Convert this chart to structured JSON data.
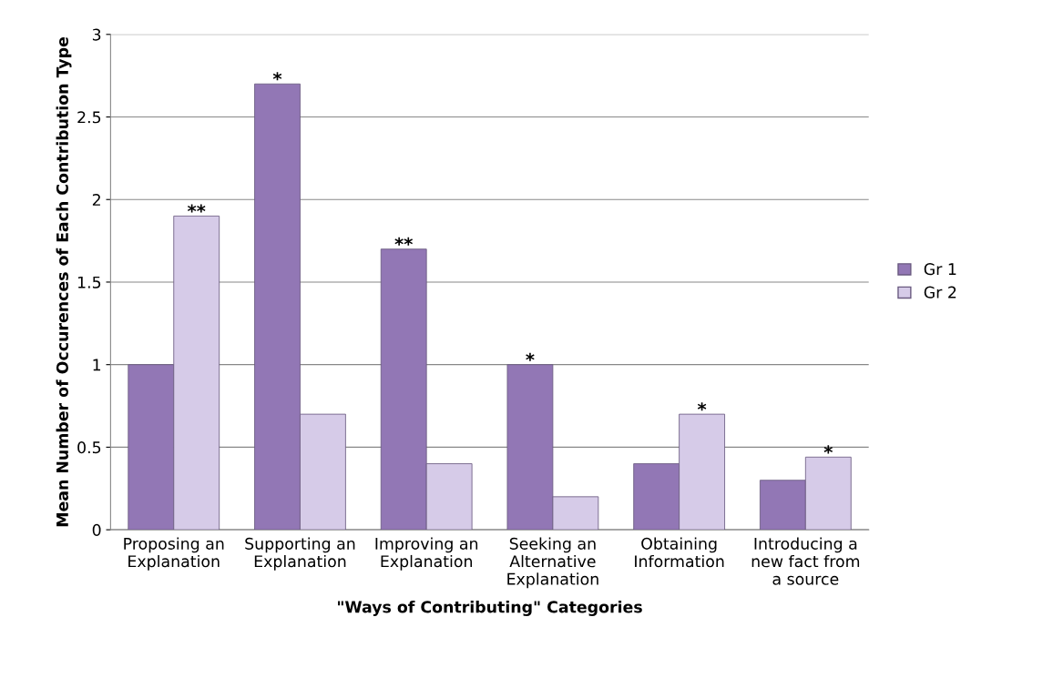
{
  "chart_data": {
    "type": "bar",
    "xlabel": "\"Ways of Contributing\" Categories",
    "ylabel": "Mean Number of Occurences of Each Contribution Type",
    "categories": [
      "Proposing an\nExplanation",
      "Supporting an\nExplanation",
      "Improving an\nExplanation",
      "Seeking an\nAlternative\nExplanation",
      "Obtaining\nInformation",
      "Introducing a\nnew fact from\na source"
    ],
    "series": [
      {
        "name": "Gr 1",
        "color": "#9277b5",
        "values": [
          1.0,
          2.7,
          1.7,
          1.0,
          0.4,
          0.3
        ],
        "value_labels": [
          null,
          "*",
          "**",
          "*",
          null,
          null
        ]
      },
      {
        "name": "Gr 2",
        "color": "#d6cbe8",
        "values": [
          1.9,
          0.7,
          0.4,
          0.2,
          0.7,
          0.44
        ],
        "value_labels": [
          "**",
          null,
          null,
          null,
          "*",
          "*"
        ]
      }
    ],
    "ylim": [
      0,
      3
    ],
    "yticks": [
      0,
      0.5,
      1,
      1.5,
      2,
      2.5,
      3
    ],
    "grid": "y",
    "legend": "right"
  }
}
